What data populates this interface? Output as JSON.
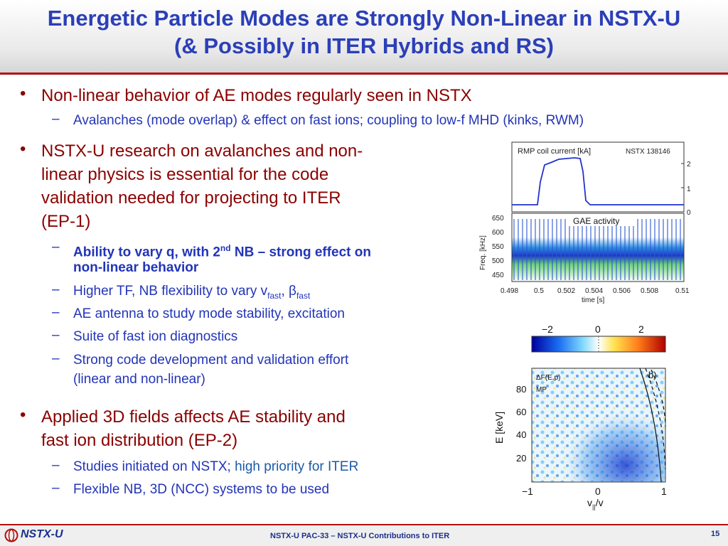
{
  "header": {
    "title_line1": "Energetic Particle Modes are Strongly Non-Linear in NSTX-U",
    "title_line2": "(& Possibly in ITER Hybrids and RS)"
  },
  "bullets": {
    "b1": "Non-linear behavior of AE modes regularly seen in NSTX",
    "b1_sub1": "Avalanches (mode overlap) & effect on fast ions; coupling to low-f MHD (kinks, RWM)",
    "b2_lines": [
      "NSTX-U research on avalanches and non-",
      "linear physics is essential for the code",
      "validation needed for projecting to ITER",
      "(EP-1)"
    ],
    "b2_sub1_a": "Ability to vary q, with 2",
    "b2_sub1_sup": "nd",
    "b2_sub1_b": " NB – strong effect on",
    "b2_sub1_c": "non-linear behavior",
    "b2_sub2_a": "Higher TF, NB flexibility to vary v",
    "b2_sub2_sub1": "fast",
    "b2_sub2_sep": ", β",
    "b2_sub2_sub2": "fast",
    "b2_sub3": "AE antenna to study mode stability, excitation",
    "b2_sub4": "Suite of fast ion diagnostics",
    "b2_sub5_a": "Strong code development and validation effort",
    "b2_sub5_b": "(linear and non-linear)",
    "b3_lines": [
      "Applied 3D fields affects AE stability and",
      "fast ion distribution (EP-2)"
    ],
    "b3_sub1_a": "Studies initiated on NSTX; ",
    "b3_sub1_b": "high priority for ITER",
    "b3_sub2": "Flexible NB, 3D (NCC) systems to be used"
  },
  "figure_top": {
    "rmp_label": "RMP coil current [kA]",
    "shot_label": "NSTX 138146",
    "rmp_ticks": [
      "2",
      "1",
      "0"
    ],
    "gae_label": "GAE activity",
    "freq_label": "Freq. [kHz]",
    "freq_ticks": [
      "650",
      "600",
      "550",
      "500",
      "450"
    ],
    "time_ticks": [
      "0.498",
      "0.5",
      "0.502",
      "0.504",
      "0.506",
      "0.508",
      "0.51"
    ],
    "time_label": "time [s]",
    "trace_color": "#2233cc"
  },
  "figure_bottom": {
    "colorbar_ticks": [
      "−2",
      "0",
      "2"
    ],
    "panel_label": "b)",
    "df_label": "ΔF(E,p)",
    "mp_label": "MP",
    "ylabel": "E [keV]",
    "y_ticks": [
      "80",
      "60",
      "40",
      "20"
    ],
    "x_ticks": [
      "−1",
      "0",
      "1"
    ],
    "xlabel_a": "v",
    "xlabel_sub": "||",
    "xlabel_b": "/v"
  },
  "footer": {
    "logo_text": "NSTX-U",
    "center_text": "NSTX-U PAC-33 – NSTX-U Contributions to ITER",
    "page_number": "15",
    "accent": "#b30f0f"
  }
}
